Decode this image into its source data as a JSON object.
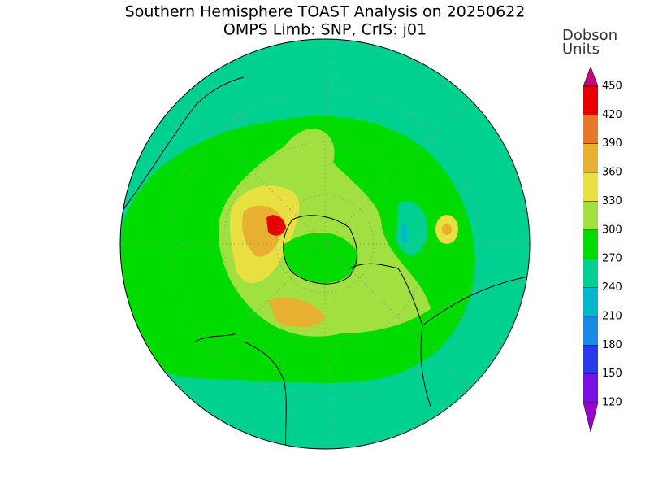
{
  "title": "Southern Hemisphere TOAST Analysis on 20250622",
  "subtitle": "OMPS Limb: SNP, CrIS: j01",
  "colorbar": {
    "title_lines": [
      "Dobson",
      "Units"
    ],
    "ticks": [
      120,
      150,
      180,
      210,
      240,
      270,
      300,
      330,
      360,
      390,
      420,
      450
    ],
    "under_color": "#9a00d0",
    "over_color": "#c8007a",
    "band_colors": [
      "#7a10e8",
      "#2a3ae8",
      "#1a8ae8",
      "#00b8c8",
      "#00d090",
      "#00dc00",
      "#a0e040",
      "#e8e040",
      "#e8b030",
      "#e87828",
      "#e80000"
    ]
  }
}
